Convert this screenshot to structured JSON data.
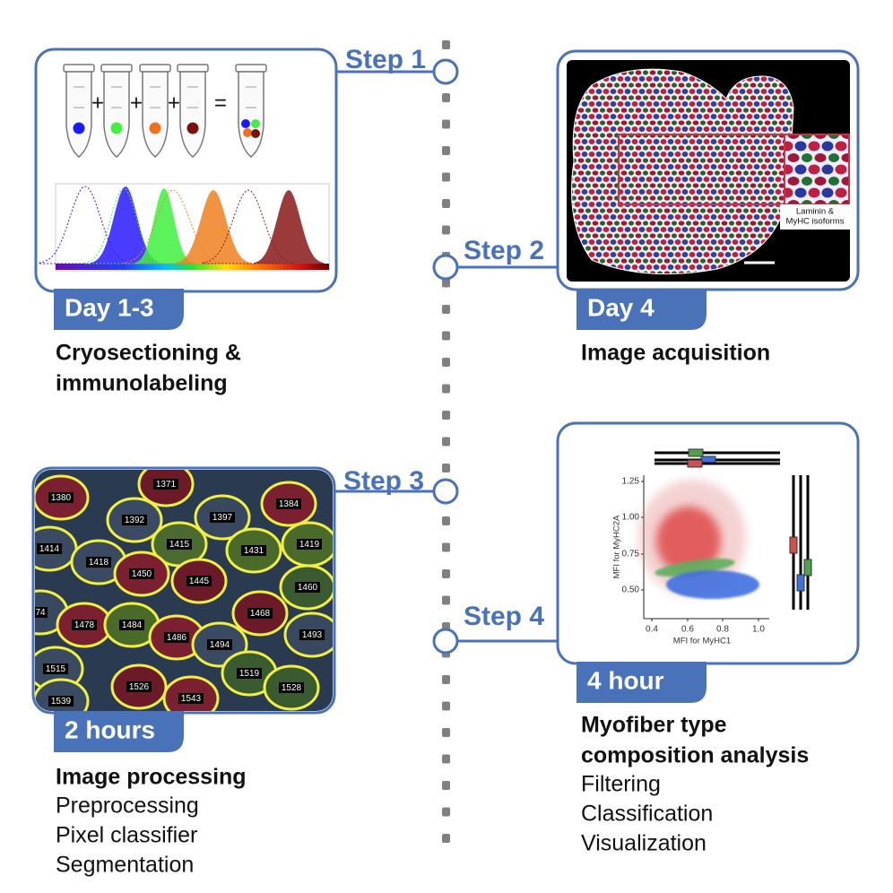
{
  "steps": [
    {
      "label": "Step 1",
      "time": "Day 1-3",
      "title": [
        "Cryosectioning &",
        "immunolabeling"
      ]
    },
    {
      "label": "Step 2",
      "time": "Day 4",
      "title": [
        "Image acquisition"
      ]
    },
    {
      "label": "Step 3",
      "time": "2 hours",
      "title": [
        "Image processing"
      ],
      "items": [
        "Preprocessing",
        "Pixel classifier",
        "Segmentation"
      ]
    },
    {
      "label": "Step 4",
      "time": "4 hour",
      "title": [
        "Myofiber type",
        "composition analysis"
      ],
      "items": [
        "Filtering",
        "Classification",
        "Visualization"
      ]
    }
  ],
  "panels": {
    "tubes": {
      "signs": [
        "+",
        "+",
        "+",
        "="
      ]
    },
    "tissue": {
      "inset_label": [
        "Laminin &",
        "MyHC isoforms"
      ]
    },
    "segmentation": {
      "cell_ids": [
        "1380",
        "1371",
        "1384",
        "1392",
        "1397",
        "1414",
        "1415",
        "1431",
        "1419",
        "1418",
        "1450",
        "1445",
        "1460",
        "74",
        "1478",
        "1484",
        "1468",
        "1486",
        "1494",
        "1493",
        "1515",
        "1519",
        "1526",
        "1543",
        "1528",
        "1539"
      ]
    },
    "plot": {
      "y_label": "MFI for MyHC2A",
      "x_label": "MFI for MyHC1",
      "yticks": [
        "1.25",
        "1.00",
        "0.75",
        "0.50"
      ],
      "xticks": [
        "0.4",
        "0.6",
        "0.8",
        "1.0"
      ]
    }
  }
}
